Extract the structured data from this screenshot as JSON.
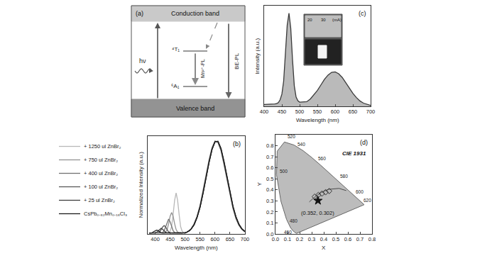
{
  "chart_data": [
    {
      "panel": "(a)",
      "type": "diagram",
      "labels": {
        "conduction_band": "Conduction band",
        "valence_band": "Valence band",
        "excitation": "hν",
        "upper_level": "⁴T₁",
        "lower_level": "⁶A₁",
        "mn_emission": "Mn²⁺-PL",
        "band_edge_emission": "BE-PL"
      }
    },
    {
      "panel": "(b)",
      "type": "line",
      "x_label": "Wavelength (nm)",
      "y_label": "Normalized Intensity (a.u.)",
      "xlim": [
        375,
        700
      ],
      "xticks": [
        400,
        450,
        500,
        550,
        600,
        650,
        700
      ],
      "ylim": [
        0,
        1.05
      ],
      "tick_labels": "x",
      "legend": "top left",
      "x": [
        380,
        385,
        390,
        395,
        400,
        405,
        410,
        415,
        420,
        425,
        430,
        435,
        440,
        445,
        450,
        455,
        460,
        465,
        470,
        475,
        480,
        485,
        490,
        495,
        500,
        505,
        510,
        515,
        520,
        530,
        540,
        550,
        560,
        570,
        580,
        590,
        600,
        610,
        620,
        630,
        640,
        650,
        660,
        670,
        680,
        690,
        700
      ],
      "series": [
        {
          "name": "+ 1250 ul ZnBr₂",
          "color": "#b8b8b8",
          "values": [
            0.01,
            0.01,
            0.01,
            0.01,
            0.01,
            0.01,
            0.01,
            0.01,
            0.01,
            0.01,
            0.01,
            0.01,
            0.01,
            0.01,
            0.03,
            0.08,
            0.21,
            0.36,
            0.44,
            0.36,
            0.21,
            0.08,
            0.03,
            0.015,
            0.012,
            0.017,
            0.025,
            0.037,
            0.052,
            0.11,
            0.19,
            0.31,
            0.47,
            0.64,
            0.8,
            0.93,
            1.0,
            0.98,
            0.89,
            0.74,
            0.58,
            0.41,
            0.27,
            0.16,
            0.09,
            0.047,
            0.022
          ]
        },
        {
          "name": "+ 750 ul ZnBr₂",
          "color": "#939393",
          "values": [
            0.01,
            0.01,
            0.01,
            0.01,
            0.01,
            0.01,
            0.01,
            0.01,
            0.01,
            0.01,
            0.01,
            0.02,
            0.047,
            0.11,
            0.19,
            0.23,
            0.19,
            0.11,
            0.047,
            0.02,
            0.01,
            0.01,
            0.01,
            0.01,
            0.012,
            0.017,
            0.025,
            0.037,
            0.052,
            0.105,
            0.185,
            0.3,
            0.455,
            0.625,
            0.785,
            0.92,
            0.995,
            0.985,
            0.9,
            0.755,
            0.595,
            0.425,
            0.28,
            0.17,
            0.095,
            0.05,
            0.024
          ]
        },
        {
          "name": "+ 400 ul ZnBr₂",
          "color": "#727272",
          "values": [
            0.01,
            0.01,
            0.01,
            0.01,
            0.01,
            0.01,
            0.01,
            0.01,
            0.01,
            0.015,
            0.035,
            0.08,
            0.13,
            0.16,
            0.13,
            0.08,
            0.035,
            0.015,
            0.01,
            0.01,
            0.01,
            0.01,
            0.01,
            0.01,
            0.012,
            0.017,
            0.025,
            0.037,
            0.052,
            0.105,
            0.185,
            0.3,
            0.455,
            0.625,
            0.785,
            0.92,
            0.995,
            0.985,
            0.9,
            0.755,
            0.595,
            0.425,
            0.28,
            0.17,
            0.095,
            0.05,
            0.024
          ]
        },
        {
          "name": "+ 100 ul ZnBr₂",
          "color": "#595959",
          "values": [
            0.01,
            0.01,
            0.01,
            0.01,
            0.01,
            0.01,
            0.013,
            0.02,
            0.047,
            0.075,
            0.09,
            0.075,
            0.047,
            0.02,
            0.013,
            0.01,
            0.01,
            0.01,
            0.01,
            0.01,
            0.01,
            0.01,
            0.01,
            0.01,
            0.012,
            0.017,
            0.025,
            0.037,
            0.052,
            0.1,
            0.18,
            0.29,
            0.44,
            0.61,
            0.77,
            0.91,
            0.99,
            0.99,
            0.91,
            0.77,
            0.61,
            0.44,
            0.29,
            0.18,
            0.1,
            0.052,
            0.025
          ]
        },
        {
          "name": "+ 25 ul ZnBr₂",
          "color": "#3f3f3f",
          "values": [
            0.01,
            0.01,
            0.01,
            0.01,
            0.012,
            0.017,
            0.033,
            0.05,
            0.06,
            0.05,
            0.033,
            0.017,
            0.012,
            0.01,
            0.01,
            0.01,
            0.01,
            0.01,
            0.01,
            0.01,
            0.01,
            0.01,
            0.01,
            0.01,
            0.012,
            0.017,
            0.025,
            0.037,
            0.052,
            0.1,
            0.18,
            0.29,
            0.44,
            0.61,
            0.77,
            0.91,
            0.99,
            0.99,
            0.91,
            0.77,
            0.61,
            0.44,
            0.29,
            0.18,
            0.1,
            0.052,
            0.025
          ]
        },
        {
          "name": "CsPb₀.₈₂Mn₀.₁₈Cl₃",
          "color": "#1c1c1c",
          "values": [
            0.01,
            0.01,
            0.012,
            0.025,
            0.035,
            0.04,
            0.035,
            0.025,
            0.012,
            0.01,
            0.01,
            0.01,
            0.01,
            0.01,
            0.01,
            0.01,
            0.01,
            0.01,
            0.01,
            0.01,
            0.01,
            0.01,
            0.01,
            0.01,
            0.012,
            0.017,
            0.025,
            0.037,
            0.052,
            0.095,
            0.175,
            0.285,
            0.435,
            0.605,
            0.765,
            0.905,
            0.99,
            0.995,
            0.92,
            0.78,
            0.62,
            0.45,
            0.3,
            0.185,
            0.105,
            0.055,
            0.027
          ]
        }
      ]
    },
    {
      "panel": "(c)",
      "type": "area",
      "x_label": "Wavelength (nm)",
      "y_label": "Intensity (a.u.)",
      "xlim": [
        400,
        700
      ],
      "xticks": [
        400,
        450,
        500,
        550,
        600,
        650,
        700
      ],
      "ylim": [
        0,
        1.08
      ],
      "tick_labels": "x",
      "inset_labels": [
        "20",
        "30",
        "(mA)"
      ],
      "x": [
        400,
        405,
        410,
        415,
        420,
        425,
        430,
        435,
        440,
        445,
        450,
        455,
        460,
        465,
        470,
        475,
        480,
        485,
        490,
        495,
        500,
        505,
        510,
        515,
        520,
        530,
        540,
        550,
        560,
        570,
        580,
        590,
        600,
        610,
        620,
        630,
        640,
        650,
        660,
        670,
        680,
        690,
        700
      ],
      "series": [
        {
          "color": "#3a3a3a",
          "values": [
            0.02,
            0.02,
            0.02,
            0.02,
            0.02,
            0.02,
            0.025,
            0.03,
            0.04,
            0.07,
            0.13,
            0.27,
            0.55,
            0.87,
            1.0,
            0.84,
            0.5,
            0.22,
            0.1,
            0.06,
            0.045,
            0.045,
            0.045,
            0.046,
            0.05,
            0.078,
            0.12,
            0.17,
            0.23,
            0.29,
            0.335,
            0.365,
            0.37,
            0.35,
            0.31,
            0.254,
            0.195,
            0.14,
            0.094,
            0.058,
            0.034,
            0.019,
            0.01
          ]
        }
      ]
    },
    {
      "panel": "(d)",
      "type": "scatter",
      "title": "CIE 1931",
      "x_label": "X",
      "y_label": "Y",
      "xlim": [
        0,
        0.8
      ],
      "ylim": [
        0,
        0.9
      ],
      "xticks": [
        {
          "value": 0,
          "label": "0.0"
        },
        0.1,
        0.2,
        0.3,
        0.4,
        0.5,
        0.6,
        0.7,
        0.8
      ],
      "yticks": [
        {
          "value": 0,
          "label": "0.0"
        },
        0.1,
        0.2,
        0.3,
        0.4,
        0.5,
        0.6,
        0.7,
        0.8
      ],
      "locus": {
        "color": "#bcbcbc",
        "wavelengths": [
          380,
          440,
          450,
          460,
          470,
          480,
          490,
          500,
          510,
          520,
          530,
          540,
          550,
          560,
          570,
          580,
          590,
          600,
          610,
          620,
          640,
          700
        ],
        "x": [
          0.1741,
          0.1644,
          0.1566,
          0.144,
          0.1241,
          0.0913,
          0.0454,
          0.0082,
          0.0139,
          0.0743,
          0.1547,
          0.2296,
          0.3016,
          0.3731,
          0.4441,
          0.5125,
          0.5752,
          0.627,
          0.6658,
          0.6915,
          0.719,
          0.7347
        ],
        "y": [
          0.005,
          0.0109,
          0.0177,
          0.0297,
          0.0578,
          0.1327,
          0.295,
          0.5384,
          0.7502,
          0.8338,
          0.8059,
          0.7543,
          0.6923,
          0.6245,
          0.5547,
          0.4866,
          0.4242,
          0.3725,
          0.334,
          0.3083,
          0.2809,
          0.2653
        ],
        "labeled_wavelengths": [
          460,
          480,
          500,
          520,
          540,
          560,
          580,
          600,
          620
        ]
      },
      "planckian_locus": {
        "color": "#4a4a4a",
        "x": [
          0.28,
          0.313,
          0.38,
          0.437,
          0.527,
          0.586
        ],
        "y": [
          0.29,
          0.324,
          0.377,
          0.404,
          0.413,
          0.393
        ]
      },
      "series": [
        {
          "x": [
            0.325,
            0.355,
            0.385,
            0.415,
            0.445
          ],
          "y": [
            0.338,
            0.353,
            0.366,
            0.378,
            0.389
          ],
          "marker": "diamond",
          "color": "#333333"
        },
        {
          "x": [
            0.352
          ],
          "y": [
            0.302
          ],
          "marker": "star",
          "color": "#111111",
          "value_labels": [
            "(0.352, 0.302)"
          ]
        }
      ]
    }
  ]
}
